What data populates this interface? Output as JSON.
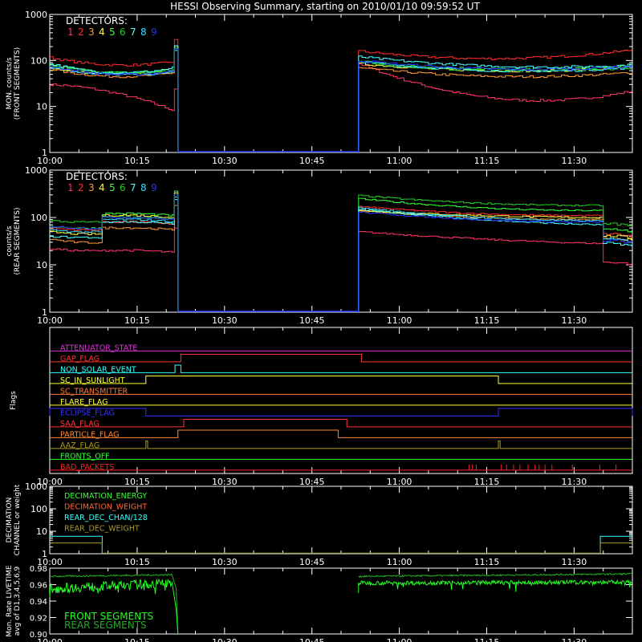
{
  "title": "HESSI Observing Summary, starting on 2010/01/10 09:59:52 UT",
  "time_axis": {
    "start": "10:00",
    "end": "11:40",
    "ticks": [
      "10:00",
      "10:15",
      "10:30",
      "10:45",
      "11:00",
      "11:15",
      "11:30"
    ],
    "minor_tick_every_min": 5
  },
  "colors": {
    "background": "#000000",
    "axes": "#ffffff",
    "det": [
      "#ff3366",
      "#ff2a2a",
      "#ff9933",
      "#ffff44",
      "#33ff33",
      "#22cc22",
      "#44ffff",
      "#33ddff",
      "#2233ff"
    ],
    "front_live": "#22ff22",
    "rear_live": "#22aa22"
  },
  "chart_data": [
    {
      "name": "front-rates",
      "type": "line",
      "ylabel": "MON. counts/s\n(FRONT SEGMENTS)",
      "yscale": "log",
      "ylim": [
        1,
        1000
      ],
      "yticks": [
        "1",
        "10",
        "100",
        "1000"
      ],
      "legend_title": "DETECTORS:",
      "legend": [
        "1",
        "2",
        "3",
        "4",
        "5",
        "6",
        "7",
        "8",
        "9"
      ],
      "gap": [
        "10:22",
        "10:53"
      ],
      "series": [
        {
          "name": "1",
          "seg": [
            [
              30,
              20,
              8
            ],
            [
              85,
              15,
              22
            ]
          ]
        },
        {
          "name": "2",
          "seg": [
            [
              115,
              80,
              95
            ],
            [
              160,
              110,
              170
            ]
          ]
        },
        {
          "name": "3",
          "seg": [
            [
              65,
              45,
              55
            ],
            [
              70,
              45,
              55
            ]
          ]
        },
        {
          "name": "4",
          "seg": [
            [
              70,
              50,
              60
            ],
            [
              85,
              60,
              70
            ]
          ]
        },
        {
          "name": "5",
          "seg": [
            [
              80,
              55,
              65
            ],
            [
              95,
              65,
              75
            ]
          ]
        },
        {
          "name": "6",
          "seg": [
            [
              75,
              55,
              60
            ],
            [
              90,
              60,
              70
            ]
          ]
        },
        {
          "name": "7",
          "seg": [
            [
              85,
              55,
              70
            ],
            [
              120,
              75,
              80
            ]
          ]
        },
        {
          "name": "8",
          "seg": [
            [
              70,
              50,
              55
            ],
            [
              95,
              60,
              70
            ]
          ]
        },
        {
          "name": "9",
          "seg": [
            [
              75,
              50,
              60
            ],
            [
              100,
              65,
              75
            ]
          ]
        }
      ]
    },
    {
      "name": "rear-rates",
      "type": "line",
      "ylabel": "counts/s\n(REAR SEGMENTS)",
      "yscale": "log",
      "ylim": [
        1,
        1000
      ],
      "yticks": [
        "1",
        "10",
        "100",
        "1000"
      ],
      "legend_title": "DETECTORS:",
      "legend": [
        "1",
        "2",
        "3",
        "4",
        "5",
        "6",
        "7",
        "8",
        "9"
      ],
      "gap": [
        "10:22",
        "10:53"
      ],
      "series": [
        {
          "name": "1",
          "seg": [
            [
              22,
              20,
              20
            ],
            [
              50,
              35,
              28
            ]
          ]
        },
        {
          "name": "2",
          "seg": [
            [
              60,
              55,
              80
            ],
            [
              170,
              120,
              110
            ]
          ]
        },
        {
          "name": "3",
          "seg": [
            [
              35,
              30,
              60
            ],
            [
              140,
              100,
              90
            ]
          ]
        },
        {
          "name": "4",
          "seg": [
            [
              50,
              45,
              110
            ],
            [
              140,
              110,
              100
            ]
          ]
        },
        {
          "name": "5",
          "seg": [
            [
              65,
              60,
              120
            ],
            [
              250,
              160,
              140
            ]
          ]
        },
        {
          "name": "6",
          "seg": [
            [
              85,
              80,
              100
            ],
            [
              290,
              200,
              180
            ]
          ]
        },
        {
          "name": "7",
          "seg": [
            [
              40,
              38,
              80
            ],
            [
              150,
              90,
              70
            ]
          ]
        },
        {
          "name": "8",
          "seg": [
            [
              55,
              50,
              90
            ],
            [
              160,
              100,
              85
            ]
          ]
        },
        {
          "name": "9",
          "seg": [
            [
              65,
              60,
              100
            ],
            [
              130,
              90,
              80
            ]
          ]
        }
      ]
    },
    {
      "name": "flags",
      "type": "timeline",
      "ylabel": "Flags",
      "flags": [
        {
          "label": "ATTENUATOR_STATE",
          "color": "#dd33dd"
        },
        {
          "label": "GAP_FLAG",
          "color": "#ff3333"
        },
        {
          "label": "NON_SOLAR_EVENT",
          "color": "#33ffff"
        },
        {
          "label": "SC_IN_SUNLIGHT",
          "color": "#ffff33"
        },
        {
          "label": "SC_TRANSMITTER",
          "color": "#ff7733"
        },
        {
          "label": "FLARE_FLAG",
          "color": "#ffff33"
        },
        {
          "label": "ECLIPSE_FLAG",
          "color": "#3333ff"
        },
        {
          "label": "SAA_FLAG",
          "color": "#ff3333"
        },
        {
          "label": "PARTICLE_FLAG",
          "color": "#ff8833"
        },
        {
          "label": "AAZ_FLAG",
          "color": "#aa9922"
        },
        {
          "label": "FRONTS_OFF",
          "color": "#33ff33"
        },
        {
          "label": "BAD_PACKETS",
          "color": "#ff2222"
        }
      ]
    },
    {
      "name": "decimation",
      "type": "line",
      "ylabel": "DECIMATION\nCHANNEL or weight",
      "yscale": "log",
      "ylim": [
        1,
        1000
      ],
      "yticks": [
        "1",
        "10",
        "100",
        "1000"
      ],
      "legend": [
        {
          "label": "DECIMATION_ENERGY",
          "color": "#33ff33"
        },
        {
          "label": "DECIMATION_WEIGHT",
          "color": "#ff6633"
        },
        {
          "label": "REAR_DEC_CHAN/128",
          "color": "#33ffff"
        },
        {
          "label": "REAR_DEC_WEIGHT",
          "color": "#aa9933"
        }
      ]
    },
    {
      "name": "livetime",
      "type": "line",
      "ylabel": "Mon. Rate LIVETIME\navg of D1,3,4,5,6,9",
      "ylim": [
        0.9,
        0.98
      ],
      "yticks": [
        "0.90",
        "0.92",
        "0.94",
        "0.96",
        "0.98"
      ],
      "legend": [
        {
          "label": "FRONT SEGMENTS",
          "color": "#22ff22"
        },
        {
          "label": "REAR SEGMENTS",
          "color": "#22aa22"
        }
      ]
    }
  ]
}
